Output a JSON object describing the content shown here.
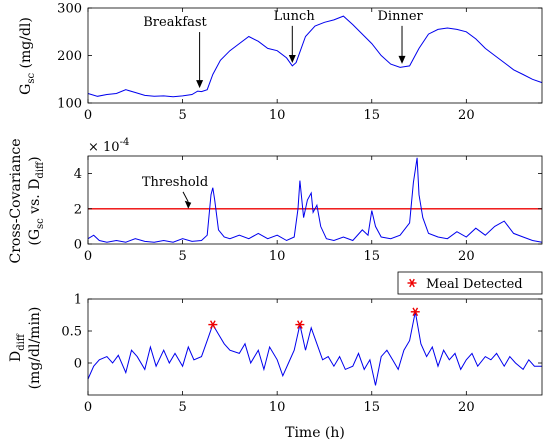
{
  "chart_data": [
    {
      "type": "line",
      "panel": "top",
      "ylabel_main": "G",
      "ylabel_sub": "sc",
      "ylabel_unit": " (mg/dl)",
      "xlim": [
        0,
        24
      ],
      "ylim": [
        100,
        300
      ],
      "xticks": [
        0,
        5,
        10,
        15,
        20
      ],
      "yticks": [
        100,
        200,
        300
      ],
      "series": [
        {
          "x": [
            0,
            0.5,
            1,
            1.5,
            2,
            2.5,
            3,
            3.5,
            4,
            4.5,
            5,
            5.5,
            5.8,
            6,
            6.3,
            6.6,
            7,
            7.5,
            8,
            8.5,
            9,
            9.5,
            10,
            10.5,
            10.8,
            11,
            11.5,
            12,
            12.5,
            13,
            13.5,
            14,
            14.5,
            15,
            15.5,
            16,
            16.5,
            17,
            17.5,
            18,
            18.5,
            19,
            19.5,
            20,
            20.5,
            21,
            21.5,
            22,
            22.5,
            23,
            23.5,
            24
          ],
          "y": [
            120,
            114,
            118,
            120,
            128,
            122,
            116,
            114,
            115,
            113,
            115,
            118,
            125,
            124,
            128,
            160,
            190,
            210,
            225,
            240,
            230,
            215,
            210,
            195,
            178,
            185,
            240,
            262,
            270,
            275,
            283,
            265,
            245,
            225,
            200,
            182,
            175,
            178,
            215,
            245,
            255,
            258,
            255,
            250,
            235,
            215,
            200,
            185,
            170,
            160,
            150,
            143
          ]
        }
      ],
      "annotations": [
        {
          "text": "Breakfast",
          "x": 5.9,
          "y": 125,
          "label_x": 4.6,
          "label_y": 262
        },
        {
          "text": "Lunch",
          "x": 10.8,
          "y": 178,
          "label_x": 10.9,
          "label_y": 275
        },
        {
          "text": "Dinner",
          "x": 16.6,
          "y": 176,
          "label_x": 16.5,
          "label_y": 275
        }
      ]
    },
    {
      "type": "line",
      "panel": "middle",
      "ylabel_line1": "Cross-Covariance",
      "ylabel_line2_pre": "(G",
      "ylabel_line2_sub1": "sc",
      "ylabel_line2_mid": " vs. D",
      "ylabel_line2_sub2": "diff",
      "ylabel_line2_post": ")",
      "exponent_base": "× 10",
      "exponent_power": "-4",
      "xlim": [
        0,
        24
      ],
      "ylim": [
        0,
        5
      ],
      "xticks": [
        0,
        5,
        10,
        15,
        20
      ],
      "yticks": [
        0,
        2,
        4
      ],
      "threshold": 2,
      "threshold_label": "Threshold",
      "threshold_label_x": 4.6,
      "threshold_label_y": 3.3,
      "threshold_arrow_x": 5.3,
      "series": [
        {
          "x": [
            0,
            0.3,
            0.6,
            1,
            1.5,
            2,
            2.5,
            3,
            3.5,
            4,
            4.5,
            5,
            5.5,
            6,
            6.3,
            6.5,
            6.6,
            6.7,
            6.9,
            7.2,
            7.5,
            8,
            8.5,
            9,
            9.5,
            10,
            10.5,
            10.9,
            11.1,
            11.2,
            11.4,
            11.6,
            11.8,
            11.9,
            12.1,
            12.3,
            12.6,
            13,
            13.5,
            14,
            14.5,
            14.8,
            15,
            15.2,
            15.5,
            16,
            16.5,
            17,
            17.2,
            17.4,
            17.5,
            17.7,
            18,
            18.5,
            19,
            19.5,
            20,
            20.5,
            21,
            21.5,
            22,
            22.5,
            23,
            23.5,
            24
          ],
          "y": [
            0.3,
            0.5,
            0.2,
            0.1,
            0.2,
            0.1,
            0.3,
            0.15,
            0.1,
            0.2,
            0.1,
            0.3,
            0.15,
            0.2,
            0.5,
            2.8,
            3.2,
            2.5,
            0.8,
            0.4,
            0.3,
            0.5,
            0.3,
            0.6,
            0.3,
            0.5,
            0.2,
            0.4,
            2.0,
            3.6,
            1.5,
            2.5,
            2.9,
            1.8,
            2.2,
            1.0,
            0.3,
            0.2,
            0.4,
            0.2,
            0.8,
            0.5,
            1.9,
            1.0,
            0.4,
            0.3,
            0.5,
            1.2,
            3.5,
            4.9,
            2.8,
            1.5,
            0.6,
            0.4,
            0.3,
            0.7,
            0.4,
            0.9,
            0.5,
            1.0,
            1.3,
            0.6,
            0.4,
            0.2,
            0.1
          ]
        }
      ]
    },
    {
      "type": "line",
      "panel": "bottom",
      "ylabel_line1_main": "D",
      "ylabel_line1_sub": "diff",
      "ylabel_line2": "(mg/dl/min)",
      "xlabel": "Time (h)",
      "xlim": [
        0,
        24
      ],
      "ylim": [
        -0.5,
        1
      ],
      "xticks": [
        0,
        5,
        10,
        15,
        20
      ],
      "yticks": [
        0,
        0.5,
        1
      ],
      "legend": {
        "label": "Meal Detected",
        "placement": "top-right"
      },
      "meal_detected": [
        {
          "x": 6.6,
          "y": 0.6
        },
        {
          "x": 11.2,
          "y": 0.6
        },
        {
          "x": 17.3,
          "y": 0.8
        }
      ],
      "series": [
        {
          "x": [
            0,
            0.3,
            0.6,
            1,
            1.3,
            1.6,
            2,
            2.3,
            2.6,
            3,
            3.3,
            3.6,
            4,
            4.3,
            4.6,
            5,
            5.3,
            5.6,
            6,
            6.3,
            6.6,
            6.9,
            7.2,
            7.5,
            8,
            8.3,
            8.6,
            9,
            9.3,
            9.6,
            10,
            10.3,
            10.6,
            10.9,
            11.2,
            11.5,
            11.8,
            12.1,
            12.4,
            12.7,
            13,
            13.3,
            13.6,
            14,
            14.3,
            14.6,
            14.9,
            15.2,
            15.5,
            15.8,
            16.1,
            16.4,
            16.7,
            17,
            17.3,
            17.6,
            17.9,
            18.2,
            18.5,
            18.8,
            19.1,
            19.4,
            19.7,
            20,
            20.3,
            20.6,
            21,
            21.3,
            21.6,
            22,
            22.3,
            22.6,
            23,
            23.3,
            23.6,
            24
          ],
          "y": [
            -0.25,
            -0.05,
            0.05,
            0.1,
            0.0,
            0.12,
            -0.15,
            0.2,
            0.1,
            -0.1,
            0.25,
            -0.05,
            0.2,
            0.0,
            0.15,
            -0.05,
            0.25,
            0.05,
            0.1,
            0.35,
            0.6,
            0.45,
            0.3,
            0.2,
            0.15,
            0.3,
            0.0,
            0.2,
            -0.1,
            0.25,
            0.05,
            -0.2,
            0.0,
            0.2,
            0.6,
            0.2,
            0.55,
            0.3,
            0.05,
            0.1,
            -0.05,
            0.1,
            -0.1,
            -0.05,
            0.15,
            -0.1,
            0.05,
            -0.35,
            0.1,
            0.2,
            0.05,
            -0.1,
            0.2,
            0.35,
            0.8,
            0.3,
            0.1,
            0.25,
            -0.05,
            0.2,
            0.05,
            0.15,
            -0.1,
            0.05,
            0.15,
            -0.05,
            0.1,
            0.05,
            0.15,
            -0.05,
            0.1,
            0.0,
            -0.1,
            0.05,
            -0.05,
            -0.05
          ]
        }
      ]
    }
  ]
}
